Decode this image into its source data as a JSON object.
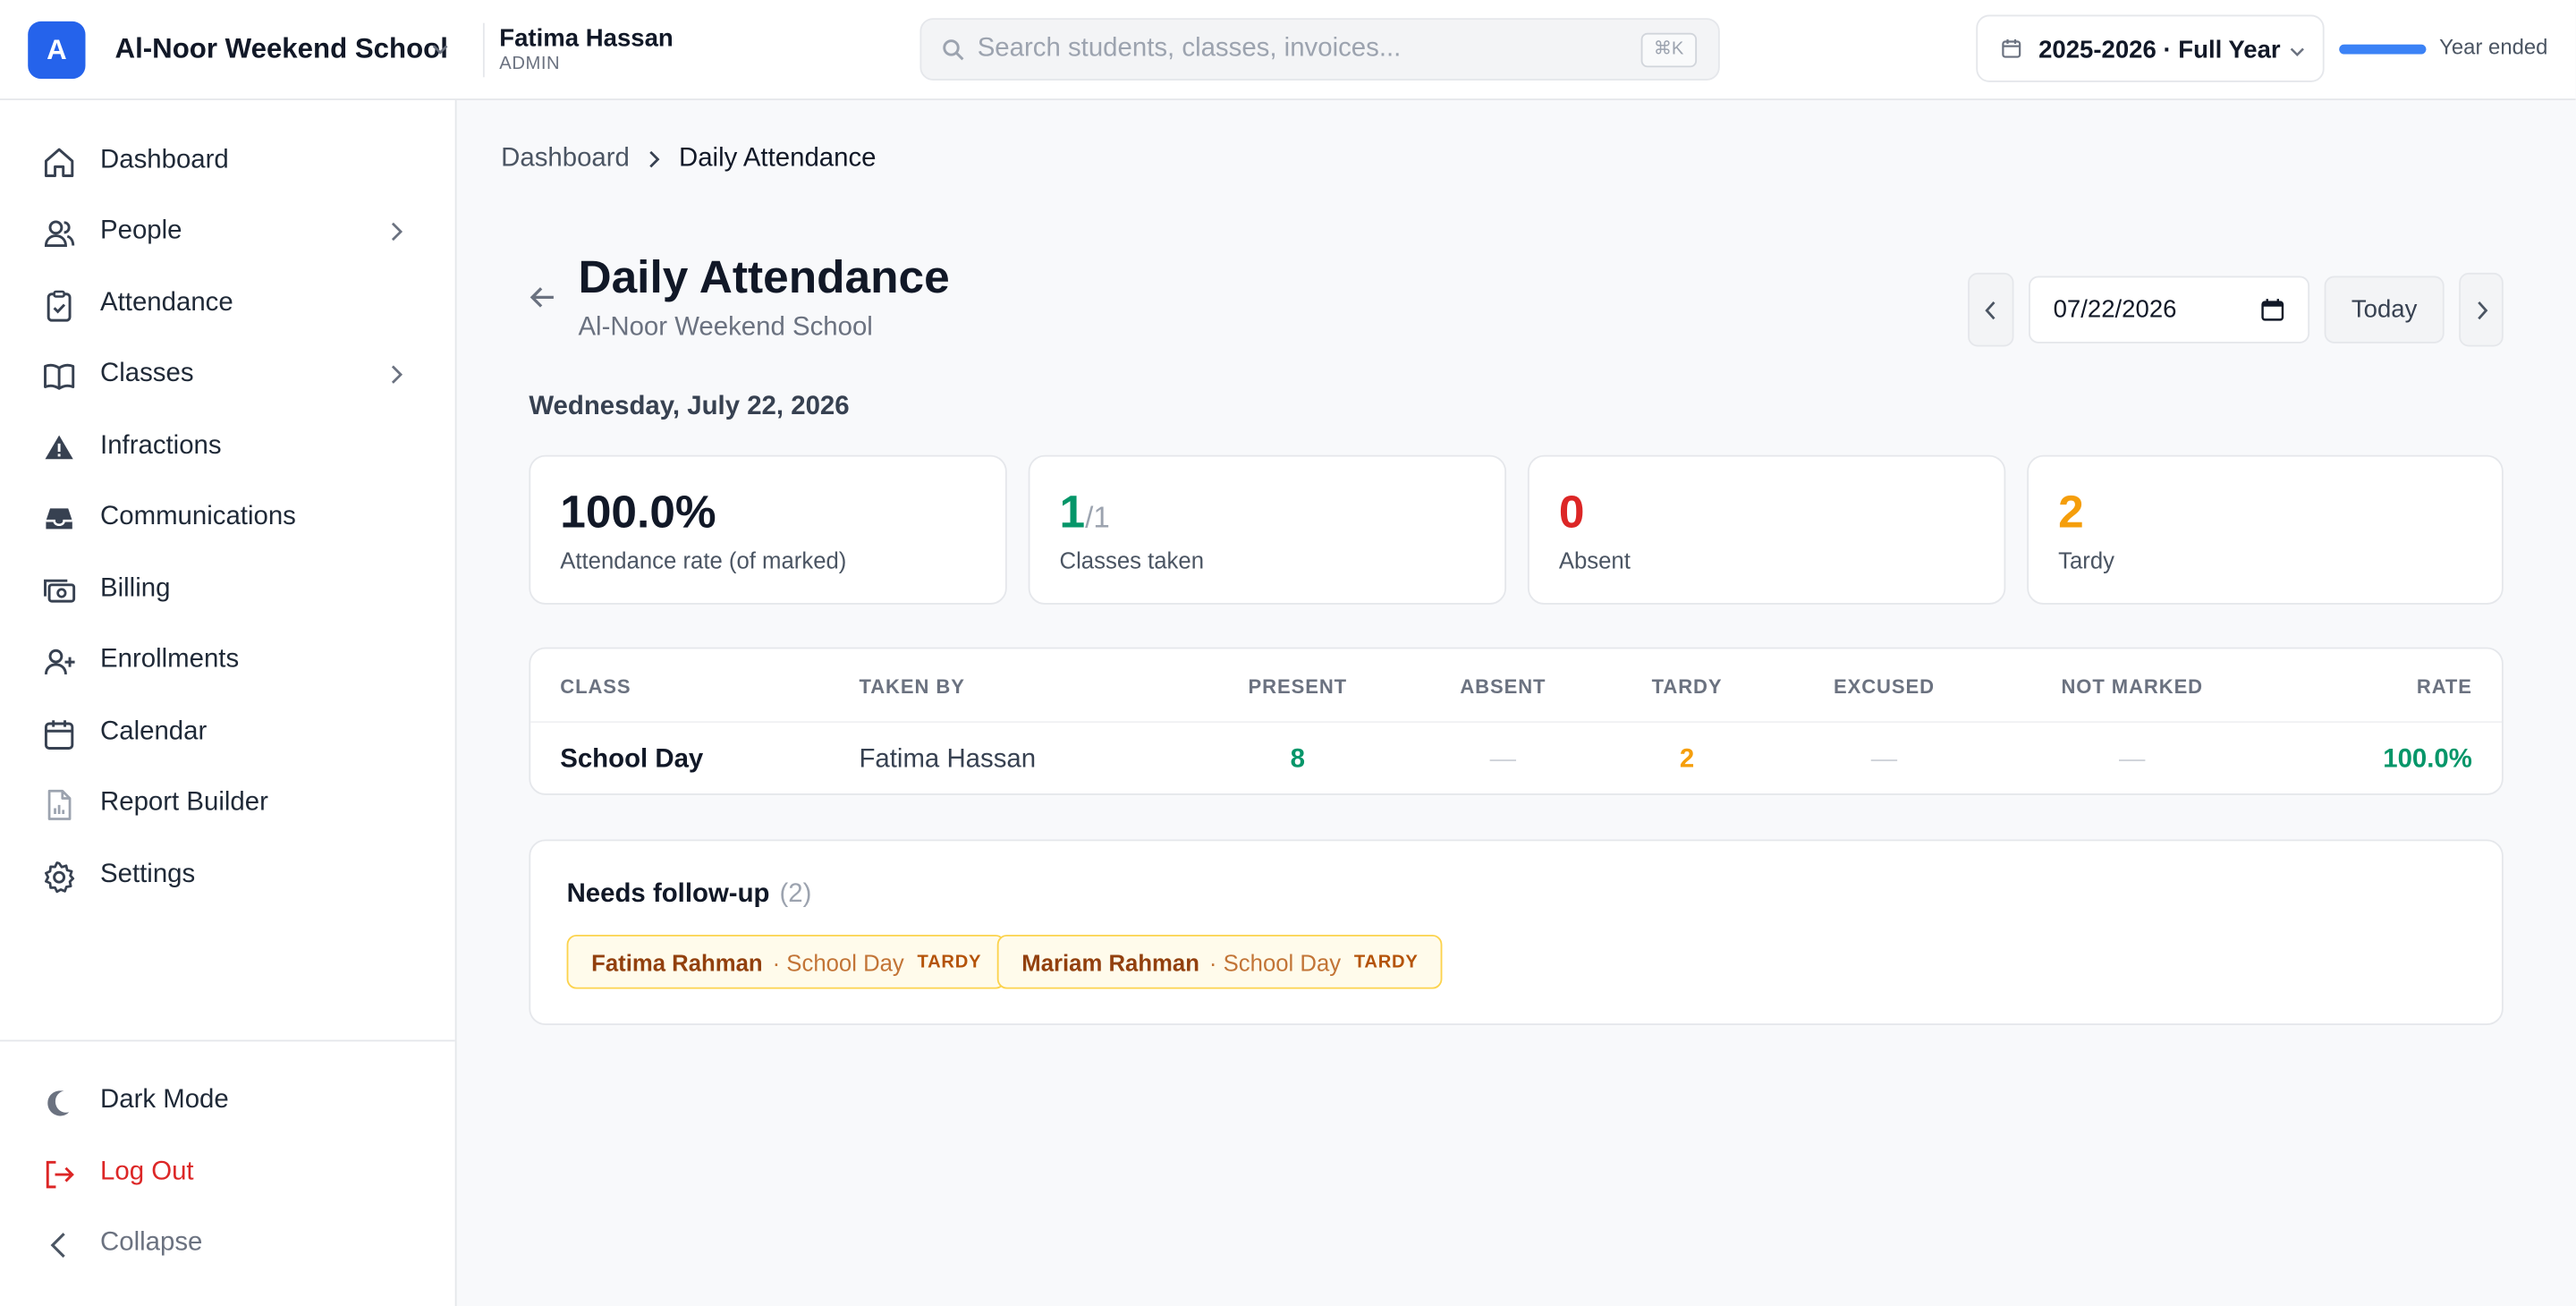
{
  "header": {
    "logo_letter": "A",
    "school_name": "Al-Noor Weekend School",
    "user_name": "Fatima Hassan",
    "user_role": "ADMIN",
    "search_placeholder": "Search students, classes, invoices...",
    "search_shortcut": "⌘K",
    "year_label": "2025-2026 · Full Year",
    "year_progress": 1.0,
    "year_status": "Year ended",
    "accent_color": "#2563eb"
  },
  "sidebar": {
    "items": [
      {
        "label": "Dashboard",
        "icon": "home-icon"
      },
      {
        "label": "People",
        "icon": "users-icon",
        "has_children": true
      },
      {
        "label": "Attendance",
        "icon": "clipboard-check-icon"
      },
      {
        "label": "Classes",
        "icon": "book-open-icon",
        "has_children": true
      },
      {
        "label": "Infractions",
        "icon": "warning-icon"
      },
      {
        "label": "Communications",
        "icon": "inbox-icon"
      },
      {
        "label": "Billing",
        "icon": "cash-icon"
      },
      {
        "label": "Enrollments",
        "icon": "user-plus-icon"
      },
      {
        "label": "Calendar",
        "icon": "calendar-icon"
      },
      {
        "label": "Report Builder",
        "icon": "report-icon"
      },
      {
        "label": "Settings",
        "icon": "gear-icon"
      }
    ],
    "footer": {
      "dark_mode": "Dark Mode",
      "logout": "Log Out",
      "collapse": "Collapse"
    }
  },
  "breadcrumb": {
    "root": "Dashboard",
    "current": "Daily Attendance"
  },
  "page": {
    "title": "Daily Attendance",
    "subtitle": "Al-Noor Weekend School",
    "date_value": "07/22/2026",
    "today_label": "Today",
    "date_heading": "Wednesday, July 22, 2026"
  },
  "stats": [
    {
      "value": "100.0%",
      "denom": "",
      "label": "Attendance rate (of marked)",
      "color": "#111827"
    },
    {
      "value": "1",
      "denom": "/1",
      "label": "Classes taken",
      "color": "#059669"
    },
    {
      "value": "0",
      "denom": "",
      "label": "Absent",
      "color": "#dc2626"
    },
    {
      "value": "2",
      "denom": "",
      "label": "Tardy",
      "color": "#f59e0b"
    }
  ],
  "table": {
    "headers": {
      "class": "CLASS",
      "taken_by": "TAKEN BY",
      "present": "PRESENT",
      "absent": "ABSENT",
      "tardy": "TARDY",
      "excused": "EXCUSED",
      "not_marked": "NOT MARKED",
      "rate": "RATE"
    },
    "rows": [
      {
        "class": "School Day",
        "taken_by": "Fatima Hassan",
        "present": "8",
        "absent": "—",
        "tardy": "2",
        "excused": "—",
        "not_marked": "—",
        "rate": "100.0%"
      }
    ]
  },
  "followup": {
    "title": "Needs follow-up",
    "count": "(2)",
    "items": [
      {
        "name": "Fatima Rahman",
        "class": "· School Day",
        "tag": "TARDY"
      },
      {
        "name": "Mariam Rahman",
        "class": "· School Day",
        "tag": "TARDY"
      }
    ]
  }
}
